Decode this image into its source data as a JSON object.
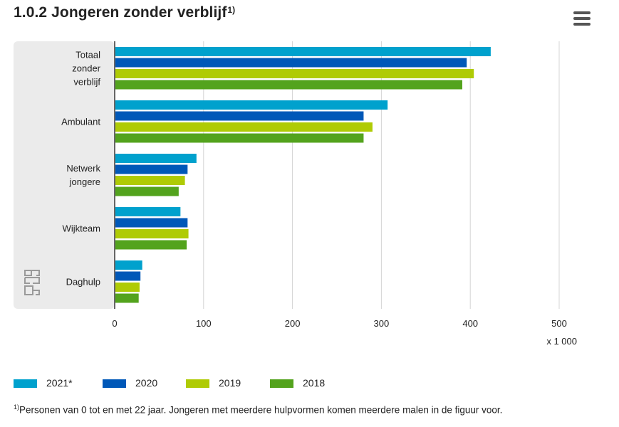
{
  "title": "1.0.2 Jongeren zonder verblijf",
  "title_footnote_marker": "1)",
  "menu_icon": "hamburger-menu-icon",
  "unit_label": "x 1 000",
  "footnote": {
    "marker": "1)",
    "text": "Personen van 0 tot en met 22 jaar. Jongeren met meerdere hulpvormen komen meerdere malen in de figuur voor."
  },
  "watermark": "cbs-logo",
  "chart_data": {
    "type": "bar",
    "orientation": "horizontal",
    "categories": [
      [
        "Totaal",
        "zonder",
        "verblijf"
      ],
      [
        "Ambulant"
      ],
      [
        "Netwerk",
        "jongere"
      ],
      [
        "Wijkteam"
      ],
      [
        "Daghulp"
      ]
    ],
    "series": [
      {
        "name": "2021*",
        "color": "#00a1cd",
        "values": [
          423,
          307,
          92,
          74,
          31
        ]
      },
      {
        "name": "2020",
        "color": "#0058b8",
        "values": [
          396,
          280,
          82,
          82,
          29
        ]
      },
      {
        "name": "2019",
        "color": "#afcb05",
        "values": [
          404,
          290,
          79,
          83,
          28
        ]
      },
      {
        "name": "2018",
        "color": "#53a31d",
        "values": [
          391,
          280,
          72,
          81,
          27
        ]
      }
    ],
    "xlim": [
      0,
      500
    ],
    "xticks": [
      0,
      100,
      200,
      300,
      400,
      500
    ],
    "grid": true,
    "legend_position": "bottom"
  }
}
